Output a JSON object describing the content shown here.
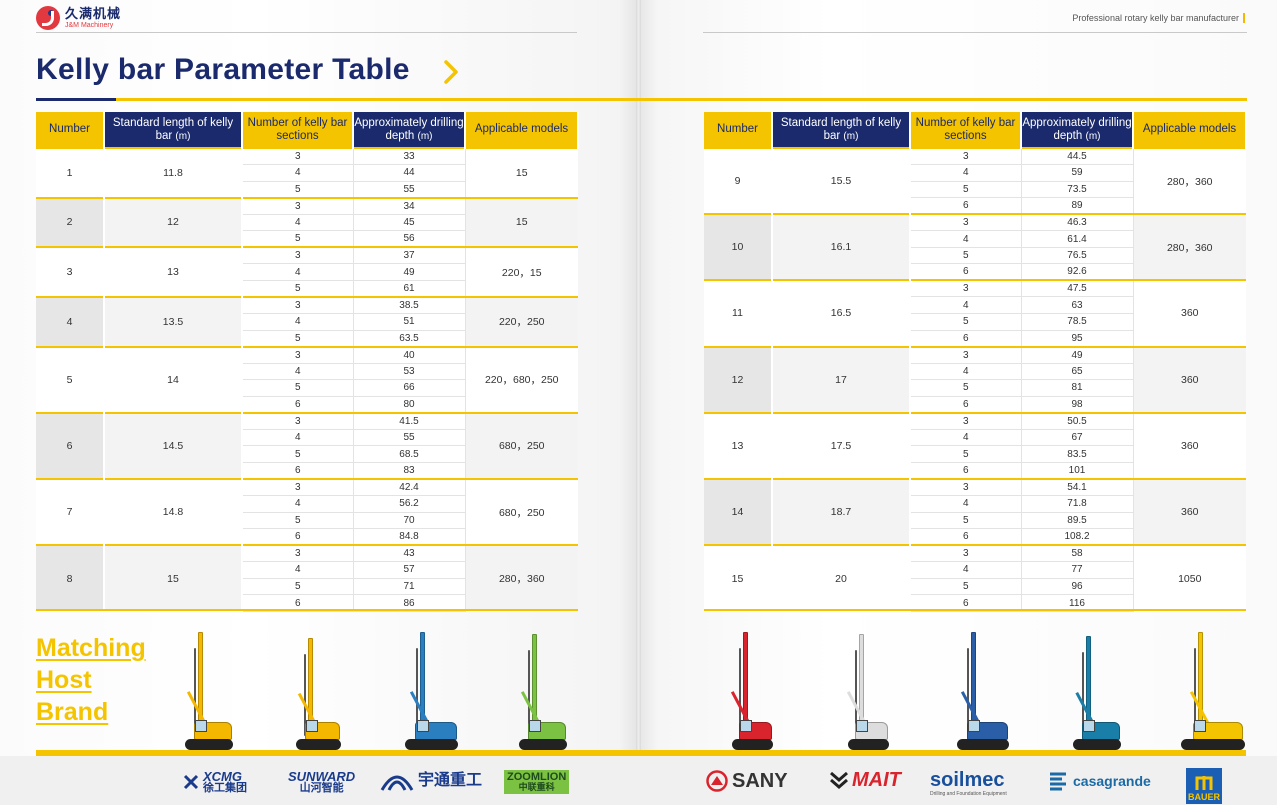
{
  "header": {
    "logo_cn": "久满机械",
    "logo_en": "J&M Machinery",
    "tagline": "Professional rotary kelly bar manufacturer"
  },
  "title": "Kelly bar Parameter Table",
  "table_headers": {
    "number": "Number",
    "length": "Standard length of kelly bar",
    "length_unit": "(m)",
    "sections": "Number of kelly bar sections",
    "depth": "Approximately drilling depth",
    "depth_unit": "(m)",
    "models": "Applicable models"
  },
  "rows_left": [
    {
      "number": "1",
      "length": "11.8",
      "models": "15",
      "items": [
        {
          "sec": "3",
          "depth": "33"
        },
        {
          "sec": "4",
          "depth": "44"
        },
        {
          "sec": "5",
          "depth": "55"
        }
      ]
    },
    {
      "number": "2",
      "length": "12",
      "models": "15",
      "items": [
        {
          "sec": "3",
          "depth": "34"
        },
        {
          "sec": "4",
          "depth": "45"
        },
        {
          "sec": "5",
          "depth": "56"
        }
      ]
    },
    {
      "number": "3",
      "length": "13",
      "models": "220，15",
      "items": [
        {
          "sec": "3",
          "depth": "37"
        },
        {
          "sec": "4",
          "depth": "49"
        },
        {
          "sec": "5",
          "depth": "61"
        }
      ]
    },
    {
      "number": "4",
      "length": "13.5",
      "models": "220，250",
      "items": [
        {
          "sec": "3",
          "depth": "38.5"
        },
        {
          "sec": "4",
          "depth": "51"
        },
        {
          "sec": "5",
          "depth": "63.5"
        }
      ]
    },
    {
      "number": "5",
      "length": "14",
      "models": "220，680，250",
      "items": [
        {
          "sec": "3",
          "depth": "40"
        },
        {
          "sec": "4",
          "depth": "53"
        },
        {
          "sec": "5",
          "depth": "66"
        },
        {
          "sec": "6",
          "depth": "80"
        }
      ]
    },
    {
      "number": "6",
      "length": "14.5",
      "models": "680，250",
      "items": [
        {
          "sec": "3",
          "depth": "41.5"
        },
        {
          "sec": "4",
          "depth": "55"
        },
        {
          "sec": "5",
          "depth": "68.5"
        },
        {
          "sec": "6",
          "depth": "83"
        }
      ]
    },
    {
      "number": "7",
      "length": "14.8",
      "models": "680，250",
      "items": [
        {
          "sec": "3",
          "depth": "42.4"
        },
        {
          "sec": "4",
          "depth": "56.2"
        },
        {
          "sec": "5",
          "depth": "70"
        },
        {
          "sec": "6",
          "depth": "84.8"
        }
      ]
    },
    {
      "number": "8",
      "length": "15",
      "models": "280，360",
      "items": [
        {
          "sec": "3",
          "depth": "43"
        },
        {
          "sec": "4",
          "depth": "57"
        },
        {
          "sec": "5",
          "depth": "71"
        },
        {
          "sec": "6",
          "depth": "86"
        }
      ]
    }
  ],
  "rows_right": [
    {
      "number": "9",
      "length": "15.5",
      "models": "280，360",
      "items": [
        {
          "sec": "3",
          "depth": "44.5"
        },
        {
          "sec": "4",
          "depth": "59"
        },
        {
          "sec": "5",
          "depth": "73.5"
        },
        {
          "sec": "6",
          "depth": "89"
        }
      ]
    },
    {
      "number": "10",
      "length": "16.1",
      "models": "280，360",
      "items": [
        {
          "sec": "3",
          "depth": "46.3"
        },
        {
          "sec": "4",
          "depth": "61.4"
        },
        {
          "sec": "5",
          "depth": "76.5"
        },
        {
          "sec": "6",
          "depth": "92.6"
        }
      ]
    },
    {
      "number": "11",
      "length": "16.5",
      "models": "360",
      "items": [
        {
          "sec": "3",
          "depth": "47.5"
        },
        {
          "sec": "4",
          "depth": "63"
        },
        {
          "sec": "5",
          "depth": "78.5"
        },
        {
          "sec": "6",
          "depth": "95"
        }
      ]
    },
    {
      "number": "12",
      "length": "17",
      "models": "360",
      "items": [
        {
          "sec": "3",
          "depth": "49"
        },
        {
          "sec": "4",
          "depth": "65"
        },
        {
          "sec": "5",
          "depth": "81"
        },
        {
          "sec": "6",
          "depth": "98"
        }
      ]
    },
    {
      "number": "13",
      "length": "17.5",
      "models": "360",
      "items": [
        {
          "sec": "3",
          "depth": "50.5"
        },
        {
          "sec": "4",
          "depth": "67"
        },
        {
          "sec": "5",
          "depth": "83.5"
        },
        {
          "sec": "6",
          "depth": "101"
        }
      ]
    },
    {
      "number": "14",
      "length": "18.7",
      "models": "360",
      "items": [
        {
          "sec": "3",
          "depth": "54.1"
        },
        {
          "sec": "4",
          "depth": "71.8"
        },
        {
          "sec": "5",
          "depth": "89.5"
        },
        {
          "sec": "6",
          "depth": "108.2"
        }
      ]
    },
    {
      "number": "15",
      "length": "20",
      "models": "1050",
      "items": [
        {
          "sec": "3",
          "depth": "58"
        },
        {
          "sec": "4",
          "depth": "77"
        },
        {
          "sec": "5",
          "depth": "96"
        },
        {
          "sec": "6",
          "depth": "116"
        }
      ]
    }
  ],
  "matching_host_brand": [
    "Matching",
    "Host",
    "Brand"
  ],
  "rigs": [
    {
      "name": "xcmg-rig",
      "color": "#f5b800"
    },
    {
      "name": "sunward-rig",
      "color": "#f5b800"
    },
    {
      "name": "yutong-rig",
      "color": "#2a7fc1"
    },
    {
      "name": "zoomlion-rig",
      "color": "#7cc242"
    },
    {
      "name": "sany-rig",
      "color": "#d9232d"
    },
    {
      "name": "mait-rig",
      "color": "#dddddd"
    },
    {
      "name": "soilmec-rig",
      "color": "#2a5fa8"
    },
    {
      "name": "casagrande-rig",
      "color": "#1a7fa8"
    },
    {
      "name": "bauer-rig",
      "color": "#f5c400"
    }
  ],
  "brands": {
    "xcmg_en": "XCMG",
    "xcmg_cn": "徐工集团",
    "sunward_en": "SUNWARD",
    "sunward_cn": "山河智能",
    "yutong_cn": "宇通重工",
    "zoomlion_en": "ZOOMLION",
    "zoomlion_cn": "中联重科",
    "sany": "SANY",
    "mait": "MAIT",
    "soilmec": "soilmec",
    "soilmec_sub": "Drilling and Foundation Equipment",
    "casagrande": "casagrande",
    "bauer": "BAUER"
  },
  "colors": {
    "navy": "#1a2a6c",
    "yellow": "#f5c400",
    "sany_red": "#d9232d"
  }
}
